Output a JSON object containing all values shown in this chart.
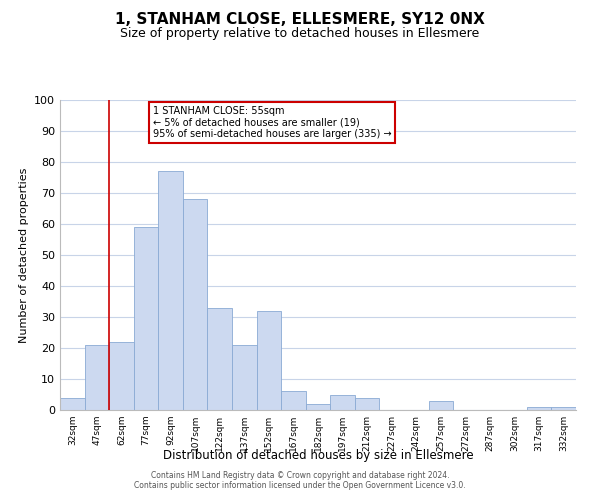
{
  "title": "1, STANHAM CLOSE, ELLESMERE, SY12 0NX",
  "subtitle": "Size of property relative to detached houses in Ellesmere",
  "xlabel": "Distribution of detached houses by size in Ellesmere",
  "ylabel": "Number of detached properties",
  "bar_color": "#ccd9f0",
  "bar_edge_color": "#8aaad4",
  "bin_labels": [
    "32sqm",
    "47sqm",
    "62sqm",
    "77sqm",
    "92sqm",
    "107sqm",
    "122sqm",
    "137sqm",
    "152sqm",
    "167sqm",
    "182sqm",
    "197sqm",
    "212sqm",
    "227sqm",
    "242sqm",
    "257sqm",
    "272sqm",
    "287sqm",
    "302sqm",
    "317sqm",
    "332sqm"
  ],
  "bar_heights": [
    4,
    21,
    22,
    59,
    77,
    68,
    33,
    21,
    32,
    6,
    2,
    5,
    4,
    0,
    0,
    3,
    0,
    0,
    0,
    1,
    1
  ],
  "ylim": [
    0,
    100
  ],
  "yticks": [
    0,
    10,
    20,
    30,
    40,
    50,
    60,
    70,
    80,
    90,
    100
  ],
  "vline_x": 2,
  "vline_color": "#cc0000",
  "annotation_text_line1": "1 STANHAM CLOSE: 55sqm",
  "annotation_text_line2": "← 5% of detached houses are smaller (19)",
  "annotation_text_line3": "95% of semi-detached houses are larger (335) →",
  "annotation_box_color": "#ffffff",
  "annotation_box_edge": "#cc0000",
  "footer_line1": "Contains HM Land Registry data © Crown copyright and database right 2024.",
  "footer_line2": "Contains public sector information licensed under the Open Government Licence v3.0.",
  "background_color": "#ffffff",
  "grid_color": "#c8d4e8"
}
